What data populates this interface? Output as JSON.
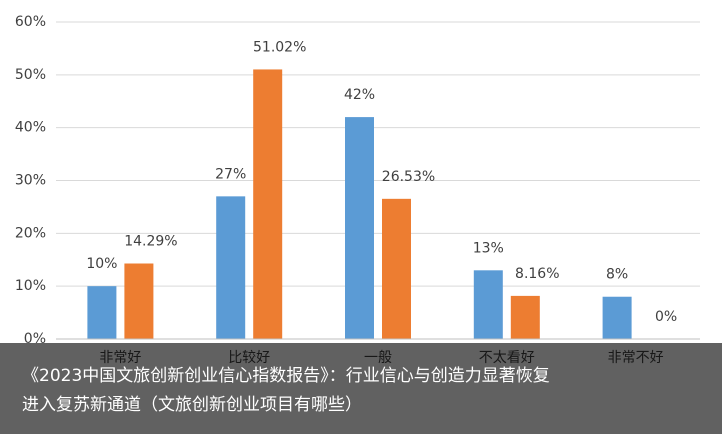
{
  "chart_data": {
    "type": "bar",
    "categories": [
      "非常好",
      "比较好",
      "一般",
      "不太看好",
      "非常不好"
    ],
    "series": [
      {
        "color": "#5b9bd5",
        "values": [
          10,
          27,
          42,
          13,
          8
        ],
        "value_labels": [
          "10%",
          "27%",
          "42%",
          "13%",
          "8%"
        ]
      },
      {
        "color": "#ed7d31",
        "values": [
          14.29,
          51.02,
          26.53,
          8.16,
          0
        ],
        "value_labels": [
          "14.29%",
          "51.02%",
          "26.53%",
          "8.16%",
          "0%"
        ]
      }
    ],
    "ylim": [
      0,
      60
    ],
    "yticks": [
      {
        "value": 0,
        "label": "0%"
      },
      {
        "value": 10,
        "label": "10%"
      },
      {
        "value": 20,
        "label": "20%"
      },
      {
        "value": 30,
        "label": "30%"
      },
      {
        "value": 40,
        "label": "40%"
      },
      {
        "value": 50,
        "label": "50%"
      },
      {
        "value": 60,
        "label": "60%"
      }
    ],
    "grid": true
  },
  "caption": [
    "《2023中国文旅创新创业信心指数报告》：行业信心与创造力显著恢复",
    "进入复苏新通道（文旅创新创业项目有哪些）"
  ]
}
